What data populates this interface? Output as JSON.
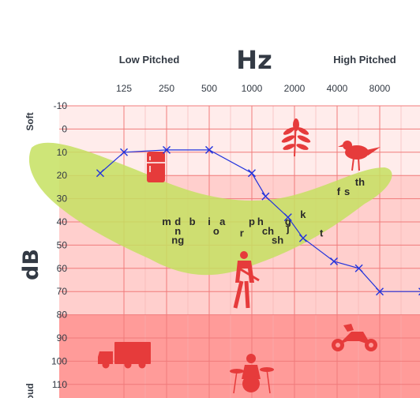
{
  "chart_data": {
    "type": "line",
    "title": "Hz",
    "header_left": "Low Pitched",
    "header_right": "High Pitched",
    "ylabel": "dB",
    "ylabel_top": "Soft",
    "ylabel_bottom": "Loud",
    "x_ticks": [
      "125",
      "250",
      "500",
      "1000",
      "2000",
      "4000",
      "8000"
    ],
    "y_ticks": [
      "-10",
      "0",
      "10",
      "20",
      "30",
      "40",
      "50",
      "60",
      "70",
      "80",
      "90",
      "100",
      "110"
    ],
    "ylim": [
      -10,
      110
    ],
    "series": [
      {
        "marker": "x",
        "color": "#2233dd",
        "points": [
          {
            "x": 85,
            "y": 19
          },
          {
            "x": 125,
            "y": 10
          },
          {
            "x": 250,
            "y": 9
          },
          {
            "x": 500,
            "y": 9
          },
          {
            "x": 1000,
            "y": 19
          },
          {
            "x": 1250,
            "y": 29
          },
          {
            "x": 1800,
            "y": 38
          },
          {
            "x": 2300,
            "y": 47
          },
          {
            "x": 3800,
            "y": 57
          },
          {
            "x": 5700,
            "y": 60
          },
          {
            "x": 8000,
            "y": 70
          },
          {
            "x": 16000,
            "y": 70
          }
        ]
      }
    ],
    "phonemes": [
      {
        "text": "m",
        "freq": 250,
        "db": 40
      },
      {
        "text": "d",
        "freq": 300,
        "db": 40
      },
      {
        "text": "b",
        "freq": 380,
        "db": 40
      },
      {
        "text": "n",
        "freq": 300,
        "db": 44
      },
      {
        "text": "ng",
        "freq": 300,
        "db": 48
      },
      {
        "text": "i",
        "freq": 500,
        "db": 40
      },
      {
        "text": "a",
        "freq": 620,
        "db": 40
      },
      {
        "text": "o",
        "freq": 560,
        "db": 44
      },
      {
        "text": "r",
        "freq": 850,
        "db": 45
      },
      {
        "text": "p",
        "freq": 1000,
        "db": 40
      },
      {
        "text": "h",
        "freq": 1150,
        "db": 40
      },
      {
        "text": "ch",
        "freq": 1300,
        "db": 44
      },
      {
        "text": "sh",
        "freq": 1520,
        "db": 48
      },
      {
        "text": "g",
        "freq": 1800,
        "db": 40
      },
      {
        "text": "j",
        "freq": 1800,
        "db": 43
      },
      {
        "text": "k",
        "freq": 2300,
        "db": 37
      },
      {
        "text": "t",
        "freq": 3100,
        "db": 45
      },
      {
        "text": "f",
        "freq": 4100,
        "db": 27
      },
      {
        "text": "s",
        "freq": 4700,
        "db": 27
      },
      {
        "text": "th",
        "freq": 5800,
        "db": 23
      }
    ],
    "icons": [
      "leaf-icon",
      "bird-icon",
      "refrigerator-icon",
      "person-walking-icon",
      "truck-icon",
      "motorcycle-icon",
      "drummer-icon"
    ],
    "grid": true,
    "banana_color": "#c6e060",
    "zone_colors": [
      "#ffeceb",
      "#ffcfcd",
      "#ff9b99"
    ]
  }
}
